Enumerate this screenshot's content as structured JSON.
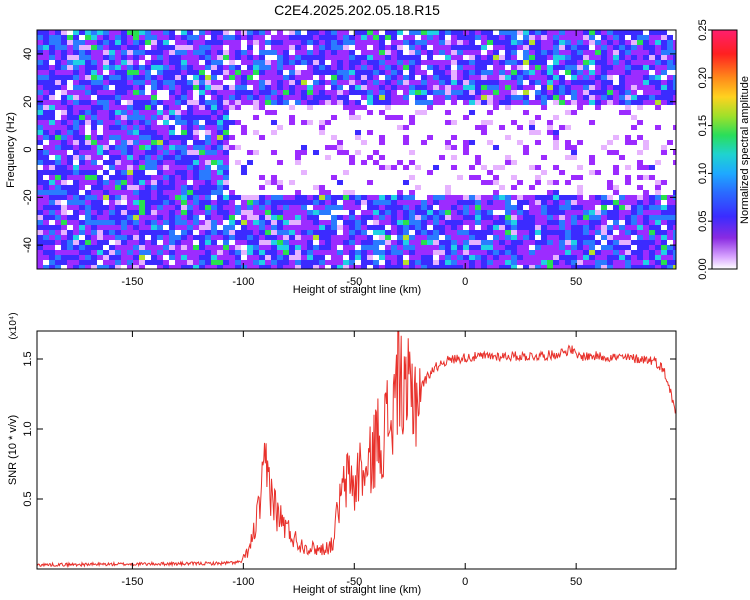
{
  "title": "C2E4.2025.202.05.18.R15",
  "colors": {
    "snr_line": "#e8302a",
    "background": "#ffffff",
    "axis": "#000000"
  },
  "chart_data": [
    {
      "type": "heatmap",
      "title": "C2E4.2025.202.05.18.R15",
      "xlabel": "Height of straight line (km)",
      "ylabel": "Frequency (Hz)",
      "xlim": [
        -193,
        95
      ],
      "ylim": [
        -50,
        50
      ],
      "xticks": [
        -150,
        -100,
        -50,
        0,
        50
      ],
      "yticks": [
        -40,
        -20,
        0,
        20,
        40
      ],
      "grid": false,
      "colorbar": {
        "label": "Normalized spectral amplitude",
        "range": [
          0.0,
          0.25
        ],
        "ticks": [
          "0.00",
          "0.05",
          "0.10",
          "0.15",
          "0.20",
          "0.25"
        ],
        "colormap": [
          "#ffffff",
          "#e6b3ff",
          "#9c2cff",
          "#3b2bff",
          "#2a7bff",
          "#20d0e6",
          "#29e04f",
          "#b6e02a",
          "#ffd21f",
          "#ff7a1a",
          "#ff1f1f",
          "#ff1f7a"
        ]
      },
      "description_values": {
        "background_level_typical": 0.06,
        "signal_band_center_hz": 0,
        "signal_band_halfwidth_hz": 18,
        "signal_onset_km": -107,
        "signal_band_level": 0.005
      }
    },
    {
      "type": "line",
      "xlabel": "Height of straight line (km)",
      "ylabel": "SNR (10 * v/v)",
      "y_multiplier": "(x10⁴)",
      "xlim": [
        -193,
        95
      ],
      "ylim": [
        0,
        17000
      ],
      "xticks": [
        -150,
        -100,
        -50,
        0,
        50
      ],
      "yticks": [
        5000,
        10000,
        15000
      ],
      "ytick_labels": [
        "0.5",
        "1.0",
        "1.5"
      ],
      "grid": false,
      "series": [
        {
          "values_key_points": {
            "x": [
              -193,
              -110,
              -101,
              -97,
              -93,
              -90,
              -88,
              -85,
              -80,
              -75,
              -70,
              -65,
              -60,
              -57,
              -55,
              -52,
              -50,
              -47,
              -45,
              -42,
              -40,
              -37,
              -35,
              -33,
              -31,
              -30,
              -28,
              -25,
              -22,
              -20,
              -15,
              -10,
              -5,
              0,
              10,
              20,
              30,
              40,
              48,
              50,
              60,
              70,
              80,
              85,
              88,
              90,
              92,
              95
            ],
            "y": [
              300,
              400,
              500,
              1500,
              4200,
              7200,
              6000,
              4000,
              2800,
              1800,
              1500,
              1400,
              1700,
              4500,
              5600,
              6800,
              5600,
              7500,
              6300,
              8100,
              9300,
              9600,
              10500,
              10800,
              12500,
              16800,
              11000,
              12600,
              12600,
              13000,
              14200,
              14800,
              15000,
              15100,
              15200,
              15200,
              15200,
              15300,
              15700,
              15200,
              15200,
              15100,
              15000,
              14900,
              14500,
              14000,
              13000,
              11000
            ]
          }
        }
      ]
    }
  ]
}
